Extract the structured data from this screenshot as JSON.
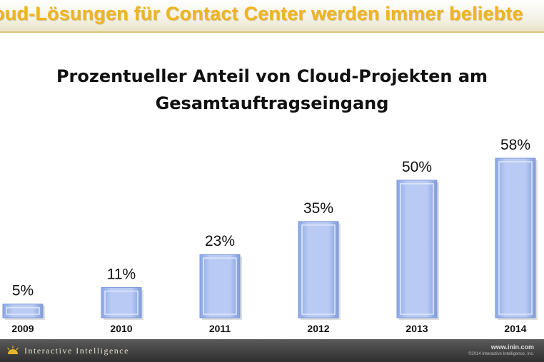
{
  "slide": {
    "banner_title": "oud-Lösungen für Contact Center werden immer beliebte",
    "colors": {
      "banner_text": "#f0b51e",
      "bar_fill": "#aabfef",
      "bar_edge": "#7e9ad8",
      "footer_bg": "#3a3a3a"
    }
  },
  "chart_data": {
    "type": "bar",
    "title_lines": [
      "Prozentueller Anteil von Cloud-Projekten am",
      "Gesamtauftragseingang"
    ],
    "categories": [
      "2009",
      "2010",
      "2011",
      "2012",
      "2013",
      "2014"
    ],
    "values": [
      5,
      11,
      23,
      35,
      50,
      58
    ],
    "value_labels": [
      "5%",
      "11%",
      "23%",
      "35%",
      "50%",
      "58%"
    ],
    "unit": "%",
    "ylim": [
      0,
      58
    ],
    "grid": false,
    "legend": "none"
  },
  "footer": {
    "brand": "Interactive Intelligence",
    "brand_icon": "sun-logo-icon",
    "url": "www.inin.com",
    "copyright": "©2014 Interactive Intelligence, Inc."
  }
}
